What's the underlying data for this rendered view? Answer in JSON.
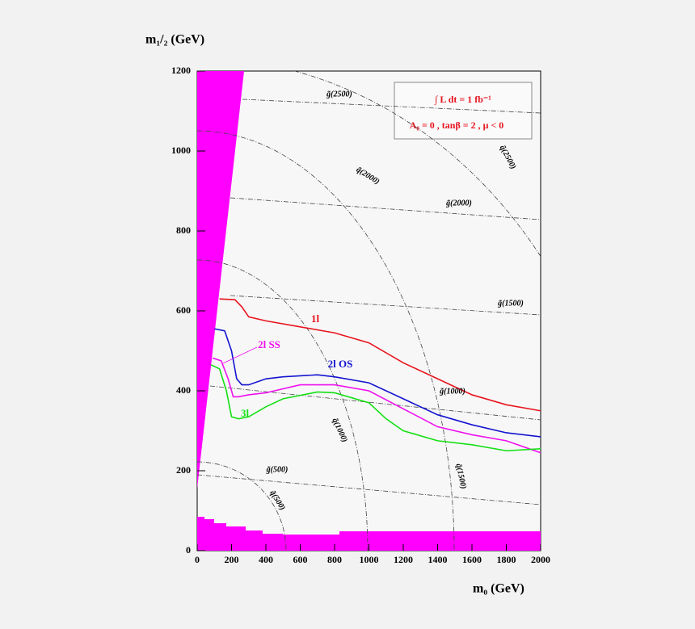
{
  "chart_data": {
    "type": "line",
    "xlabel": "m₀  (GeV)",
    "ylabel": "m₁/₂  (GeV)",
    "xlim": [
      0,
      2000
    ],
    "xticks": [
      0,
      200,
      400,
      600,
      800,
      1000,
      1200,
      1400,
      1600,
      1800,
      2000
    ],
    "ylim": [
      0,
      1200
    ],
    "yticks": [
      0,
      200,
      400,
      600,
      800,
      1000,
      1200
    ],
    "annotations": [
      "∫ L dt = 1 fb⁻¹",
      "A₀ = 0 ,  tanβ = 2 ,  μ < 0"
    ],
    "contour_labels": [
      "g̃(2500)",
      "q̃(2500)",
      "q̃(2000)",
      "g̃(2000)",
      "g̃(1500)",
      "g̃(1000)",
      "q̃(1500)",
      "q̃(1000)",
      "g̃(500)",
      "q̃(500)"
    ],
    "series": [
      {
        "name": "1l",
        "color": "#e8141e",
        "x": [
          130,
          220,
          260,
          300,
          400,
          600,
          800,
          1000,
          1200,
          1400,
          1600,
          1800,
          2000
        ],
        "values": [
          630,
          628,
          610,
          585,
          575,
          560,
          545,
          520,
          470,
          430,
          390,
          365,
          350
        ]
      },
      {
        "name": "2l SS",
        "color": "#ee10ee",
        "x": [
          90,
          140,
          180,
          210,
          240,
          300,
          400,
          600,
          800,
          1000,
          1200,
          1400,
          1600,
          1800,
          2000
        ],
        "values": [
          482,
          475,
          430,
          385,
          385,
          390,
          395,
          415,
          415,
          400,
          355,
          310,
          290,
          275,
          245
        ]
      },
      {
        "name": "2l OS",
        "color": "#1414d0",
        "x": [
          100,
          160,
          200,
          230,
          260,
          300,
          400,
          500,
          700,
          800,
          1000,
          1200,
          1400,
          1600,
          1800,
          2000
        ],
        "values": [
          555,
          550,
          500,
          430,
          415,
          415,
          430,
          435,
          440,
          435,
          420,
          380,
          340,
          315,
          295,
          285
        ]
      },
      {
        "name": "3l",
        "color": "#14e014",
        "x": [
          80,
          130,
          170,
          200,
          240,
          300,
          400,
          500,
          700,
          800,
          1000,
          1100,
          1200,
          1400,
          1600,
          1800,
          2000
        ],
        "values": [
          465,
          455,
          400,
          335,
          330,
          335,
          360,
          380,
          397,
          395,
          370,
          330,
          300,
          275,
          265,
          250,
          255
        ]
      }
    ]
  }
}
